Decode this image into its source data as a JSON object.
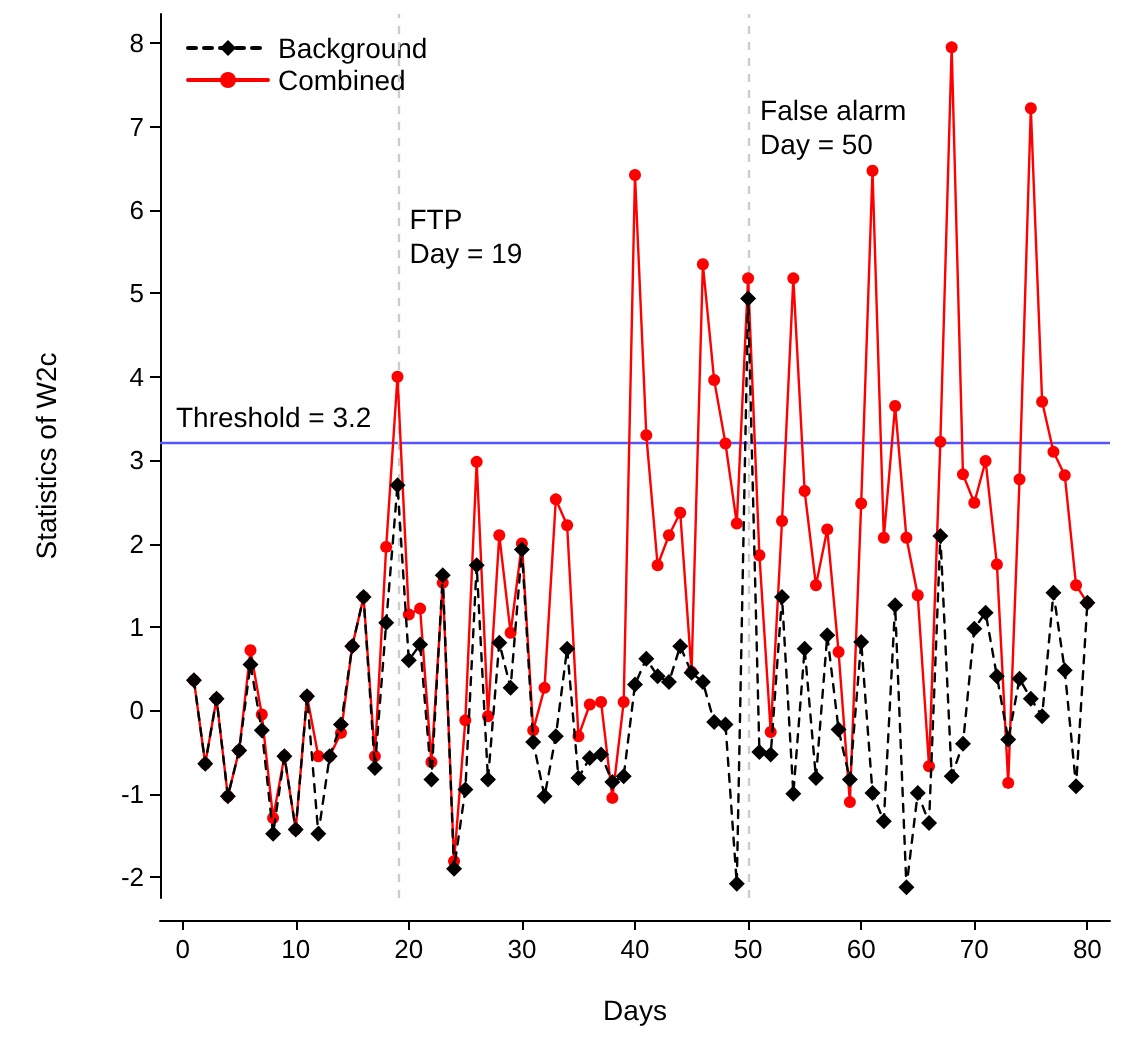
{
  "chart_data": {
    "type": "line",
    "xlabel": "Days",
    "ylabel": "Statistics of W2c",
    "x": [
      1,
      2,
      3,
      4,
      5,
      6,
      7,
      8,
      9,
      10,
      11,
      12,
      13,
      14,
      15,
      16,
      17,
      18,
      19,
      20,
      21,
      22,
      23,
      24,
      25,
      26,
      27,
      28,
      29,
      30,
      31,
      32,
      33,
      34,
      35,
      36,
      37,
      38,
      39,
      40,
      41,
      42,
      43,
      44,
      45,
      46,
      47,
      48,
      49,
      50,
      51,
      52,
      53,
      54,
      55,
      56,
      57,
      58,
      59,
      60,
      61,
      62,
      63,
      64,
      65,
      66,
      67,
      68,
      69,
      70,
      71,
      72,
      73,
      74,
      75,
      76,
      77,
      78,
      79,
      80
    ],
    "series": [
      {
        "name": "Background",
        "color": "#000000",
        "marker": "diamond",
        "line_style": "dashed",
        "values": [
          0.36,
          -0.64,
          0.14,
          -1.03,
          -0.48,
          0.55,
          -0.24,
          -1.48,
          -0.55,
          -1.43,
          0.17,
          -1.48,
          -0.55,
          -0.17,
          0.77,
          1.36,
          -0.69,
          1.05,
          2.7,
          0.6,
          0.79,
          -0.83,
          1.62,
          -1.9,
          -0.95,
          1.74,
          -0.83,
          0.81,
          0.27,
          1.93,
          -0.38,
          -1.03,
          -0.31,
          0.74,
          -0.81,
          -0.57,
          -0.53,
          -0.86,
          -0.79,
          0.31,
          0.62,
          0.41,
          0.34,
          0.77,
          0.45,
          0.34,
          -0.14,
          -0.17,
          -2.08,
          4.94,
          -0.5,
          -0.53,
          1.36,
          -1.0,
          0.74,
          -0.81,
          0.9,
          -0.23,
          -0.83,
          0.82,
          -0.99,
          -1.33,
          1.26,
          -2.12,
          -0.99,
          -1.35,
          2.09,
          -0.79,
          -0.4,
          0.98,
          1.17,
          0.41,
          -0.35,
          0.38,
          0.14,
          -0.07,
          1.41,
          0.48,
          -0.91,
          1.29
        ]
      },
      {
        "name": "Combined",
        "color": "#ff0000",
        "marker": "circle",
        "line_style": "solid",
        "values": [
          0.36,
          -0.64,
          0.14,
          -1.03,
          -0.48,
          0.72,
          -0.05,
          -1.29,
          -0.55,
          -1.43,
          0.17,
          -0.55,
          -0.55,
          -0.27,
          0.77,
          1.36,
          -0.55,
          1.96,
          4.0,
          1.15,
          1.22,
          -0.62,
          1.53,
          -1.81,
          -0.12,
          2.98,
          -0.07,
          2.1,
          0.93,
          2.0,
          -0.24,
          0.27,
          2.53,
          2.22,
          -0.31,
          0.07,
          0.1,
          -1.05,
          0.1,
          6.42,
          3.3,
          1.74,
          2.1,
          2.37,
          0.46,
          5.35,
          3.96,
          3.2,
          2.24,
          5.18,
          1.86,
          -0.26,
          2.27,
          5.18,
          2.63,
          1.5,
          2.17,
          0.7,
          -1.1,
          2.48,
          6.47,
          2.07,
          3.65,
          2.07,
          1.38,
          -0.67,
          3.22,
          7.95,
          2.83,
          2.49,
          2.99,
          1.75,
          -0.87,
          2.77,
          7.22,
          3.7,
          3.1,
          2.82,
          1.5,
          1.29
        ]
      }
    ],
    "xlim": [
      -2,
      82
    ],
    "xticks": [
      0,
      10,
      20,
      30,
      40,
      50,
      60,
      70,
      80
    ],
    "ylim": [
      -2.25,
      8.35
    ],
    "yticks": [
      -2,
      -1,
      0,
      1,
      2,
      3,
      4,
      5,
      6,
      7,
      8
    ],
    "ref_lines": [
      {
        "axis": "y",
        "value": 3.2,
        "label": "Threshold = 3.2",
        "color": "#5555ff",
        "line_style": "solid"
      },
      {
        "axis": "x",
        "value": 19,
        "label": "FTP\nDay = 19",
        "color": "#cccccc",
        "line_style": "dashed"
      },
      {
        "axis": "x",
        "value": 50,
        "label": "False alarm\nDay = 50",
        "color": "#cccccc",
        "line_style": "dashed"
      }
    ],
    "grid": false,
    "legend": "top left"
  }
}
